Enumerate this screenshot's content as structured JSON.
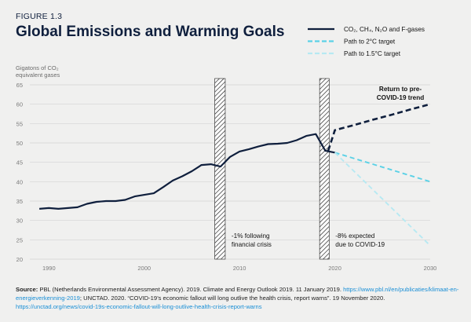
{
  "figure_label": "FIGURE 1.3",
  "title": "Global Emissions and Warming Goals",
  "ylabel_lines": [
    "Gigatons of CO₂",
    "equivalent gases"
  ],
  "colors": {
    "historical": "#0f1f3d",
    "path_2c": "#5bd1e6",
    "path_15c": "#b7e9f2",
    "grid": "#d3d3d3",
    "axis_text": "#7a7a7a"
  },
  "chart_data": {
    "type": "line",
    "xlim": [
      1988,
      2030
    ],
    "ylim": [
      20,
      65
    ],
    "x_ticks": [
      1990,
      2000,
      2010,
      2020,
      2030
    ],
    "y_ticks": [
      20,
      25,
      30,
      35,
      40,
      45,
      50,
      55,
      60,
      65
    ],
    "grid": "horizontal",
    "legend_position": "top-right",
    "series": [
      {
        "name": "CO₂, CH₄, N₂O and F-gases",
        "style": "solid",
        "x": [
          1989,
          1990,
          1991,
          1992,
          1993,
          1994,
          1995,
          1996,
          1997,
          1998,
          1999,
          2000,
          2001,
          2002,
          2003,
          2004,
          2005,
          2006,
          2007,
          2008,
          2009,
          2010,
          2011,
          2012,
          2013,
          2014,
          2015,
          2016,
          2017,
          2018,
          2019,
          2020
        ],
        "y": [
          33.0,
          33.2,
          33.0,
          33.2,
          33.4,
          34.3,
          34.8,
          35.0,
          35.0,
          35.3,
          36.2,
          36.6,
          37.0,
          38.6,
          40.3,
          41.4,
          42.7,
          44.3,
          44.5,
          43.9,
          46.4,
          47.8,
          48.4,
          49.1,
          49.7,
          49.8,
          50.0,
          50.7,
          51.8,
          52.3,
          48.0,
          47.5
        ]
      },
      {
        "name": "Return to pre-COVID-19 trend",
        "style": "dashed",
        "x": [
          2019.3,
          2020.0,
          2022,
          2024,
          2026,
          2028,
          2030
        ],
        "y": [
          48.0,
          53.3,
          54.6,
          56.0,
          57.3,
          58.7,
          60.0
        ]
      },
      {
        "name": "Path to 2°C target",
        "style": "dashed",
        "x": [
          2020,
          2030
        ],
        "y": [
          47.5,
          40.0
        ]
      },
      {
        "name": "Path to 1.5°C target",
        "style": "dashed",
        "x": [
          2020,
          2030
        ],
        "y": [
          47.5,
          23.5
        ]
      }
    ],
    "shaded_periods": [
      {
        "x_start": 2007.4,
        "x_end": 2008.5,
        "annotation_lines": [
          "-1% following",
          "financial crisis"
        ]
      },
      {
        "x_start": 2018.4,
        "x_end": 2019.4,
        "annotation_lines": [
          "-8% expected",
          "due to COVID-19"
        ]
      }
    ],
    "trend_annotation_lines": [
      "Return to pre-",
      "COVID-19 trend"
    ]
  },
  "legend": [
    {
      "label": "CO₂, CH₄, N₂O and F-gases",
      "style": "solid",
      "color": "#0f1f3d"
    },
    {
      "label": "Path to 2°C target",
      "style": "dashed",
      "color": "#5bd1e6"
    },
    {
      "label": "Path to 1.5°C target",
      "style": "dashed",
      "color": "#b7e9f2"
    }
  ],
  "source": {
    "label": "Source:",
    "text1": " PBL (Netherlands Environmental Assessment Agency). 2019. Climate and Energy Outlook 2019. 11 January 2019. ",
    "link1": "https://www.pbl.nl/en/publicaties/klimaat-en-energieverkenning-2019",
    "text2": "; UNCTAD. 2020. “COVID-19’s economic fallout will long outlive the health crisis, report warns”. 19 November 2020. ",
    "link2": "https://unctad.org/news/covid-19s-economic-fallout-will-long-outlive-health-crisis-report-warns"
  }
}
